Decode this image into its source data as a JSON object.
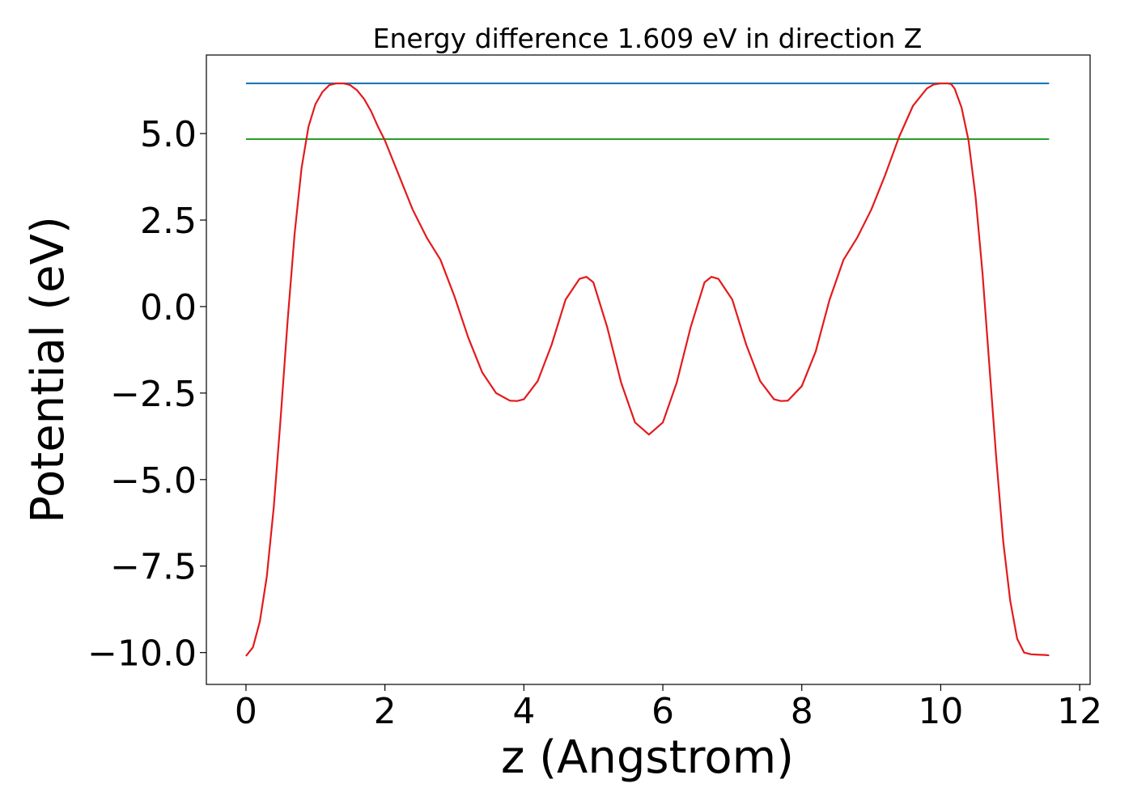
{
  "chart_data": {
    "type": "line",
    "title": "Energy difference 1.609 eV in direction Z",
    "xlabel": "z (Angstrom)",
    "ylabel": "Potential (eV)",
    "xlim": [
      -0.57,
      12.15
    ],
    "ylim": [
      -10.92,
      7.27
    ],
    "x_ticks": [
      0,
      2,
      4,
      6,
      8,
      10,
      12
    ],
    "y_ticks": [
      5.0,
      2.5,
      0.0,
      -2.5,
      -5.0,
      -7.5,
      -10.0
    ],
    "x_tick_labels": [
      "0",
      "2",
      "4",
      "6",
      "8",
      "10",
      "12"
    ],
    "y_tick_labels": [
      "5.0",
      "2.5",
      "0.0",
      "−2.5",
      "−5.0",
      "−7.5",
      "−10.0"
    ],
    "grid": false,
    "legend": "none",
    "series": [
      {
        "color": "#e31a1c",
        "x": [
          0,
          0.1,
          0.2,
          0.3,
          0.4,
          0.5,
          0.6,
          0.7,
          0.8,
          0.9,
          1.0,
          1.1,
          1.2,
          1.3,
          1.4,
          1.45,
          1.5,
          1.6,
          1.7,
          1.8,
          1.9,
          2.0,
          2.2,
          2.4,
          2.6,
          2.8,
          3.0,
          3.2,
          3.4,
          3.6,
          3.8,
          3.9,
          4.0,
          4.2,
          4.4,
          4.6,
          4.8,
          4.9,
          5.0,
          5.2,
          5.4,
          5.6,
          5.8,
          6.0,
          6.2,
          6.4,
          6.6,
          6.7,
          6.8,
          7.0,
          7.2,
          7.4,
          7.6,
          7.7,
          7.8,
          8.0,
          8.2,
          8.4,
          8.6,
          8.8,
          9.0,
          9.2,
          9.4,
          9.6,
          9.8,
          9.9,
          10.0,
          10.1,
          10.15,
          10.2,
          10.3,
          10.4,
          10.5,
          10.6,
          10.7,
          10.8,
          10.9,
          11.0,
          11.1,
          11.2,
          11.3,
          11.4,
          11.5,
          11.56
        ],
        "y": [
          -10.1,
          -9.85,
          -9.1,
          -7.8,
          -5.8,
          -3.2,
          -0.4,
          2.1,
          4.0,
          5.2,
          5.85,
          6.2,
          6.4,
          6.45,
          6.45,
          6.43,
          6.4,
          6.25,
          6.0,
          5.65,
          5.2,
          4.8,
          3.8,
          2.8,
          2.0,
          1.35,
          0.3,
          -0.9,
          -1.9,
          -2.5,
          -2.72,
          -2.73,
          -2.68,
          -2.15,
          -1.1,
          0.2,
          0.8,
          0.86,
          0.7,
          -0.6,
          -2.2,
          -3.35,
          -3.7,
          -3.35,
          -2.2,
          -0.6,
          0.7,
          0.86,
          0.8,
          0.2,
          -1.1,
          -2.15,
          -2.68,
          -2.73,
          -2.72,
          -2.3,
          -1.3,
          0.2,
          1.35,
          2.0,
          2.8,
          3.8,
          4.9,
          5.8,
          6.3,
          6.42,
          6.45,
          6.45,
          6.43,
          6.3,
          5.75,
          4.8,
          3.2,
          1.0,
          -1.7,
          -4.4,
          -6.8,
          -8.5,
          -9.6,
          -10.0,
          -10.05,
          -10.06,
          -10.07,
          -10.08
        ]
      },
      {
        "color": "#1f77b4",
        "x": [
          0,
          11.56
        ],
        "y": [
          6.45,
          6.45
        ]
      },
      {
        "color": "#2ca02c",
        "x": [
          0,
          11.56
        ],
        "y": [
          4.84,
          4.84
        ]
      }
    ]
  }
}
